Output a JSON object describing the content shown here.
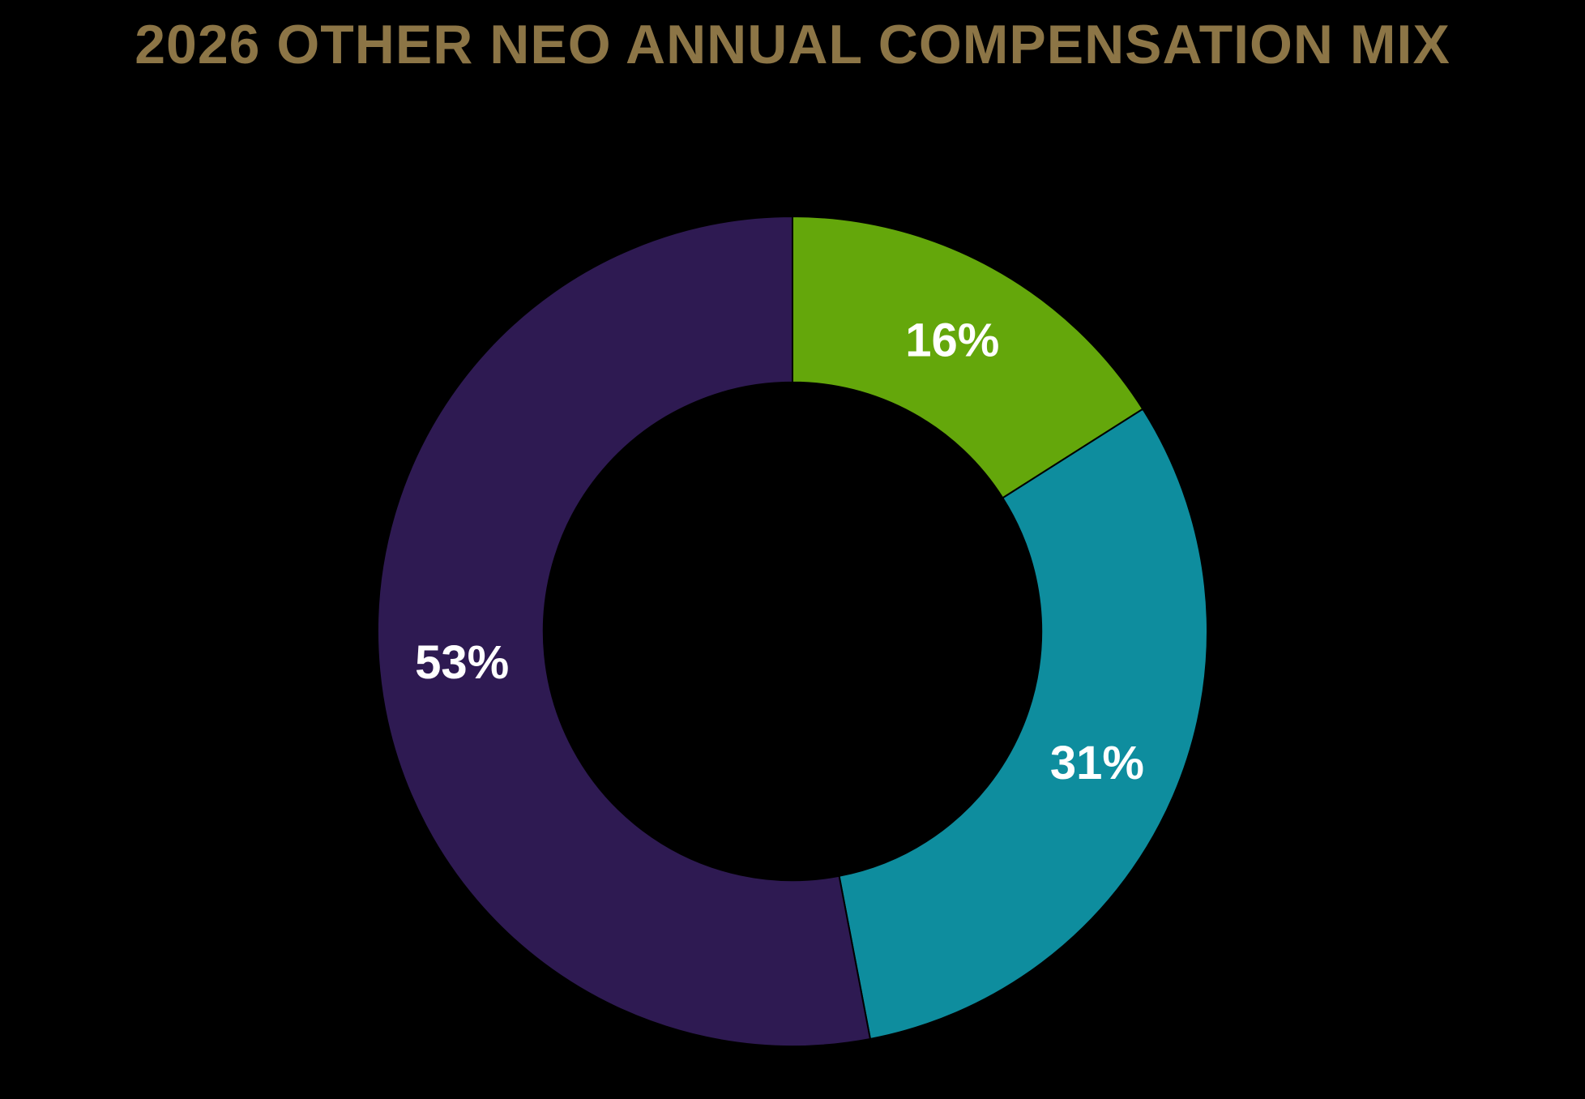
{
  "chart_data": {
    "type": "pie",
    "subtype": "donut",
    "title": "2026 OTHER NEO ANNUAL COMPENSATION MIX",
    "values": [
      16,
      31,
      53
    ],
    "labels": [
      "16%",
      "31%",
      "53%"
    ],
    "colors": [
      "#64A70B",
      "#0E8D9E",
      "#2E1A52"
    ],
    "start_angle_deg": 0,
    "direction": "clockwise",
    "inner_radius_ratio": 0.6,
    "background_color": "#000000",
    "title_color": "#8C7546",
    "label_color": "#FFFFFF",
    "legend": "none",
    "grid": false
  }
}
